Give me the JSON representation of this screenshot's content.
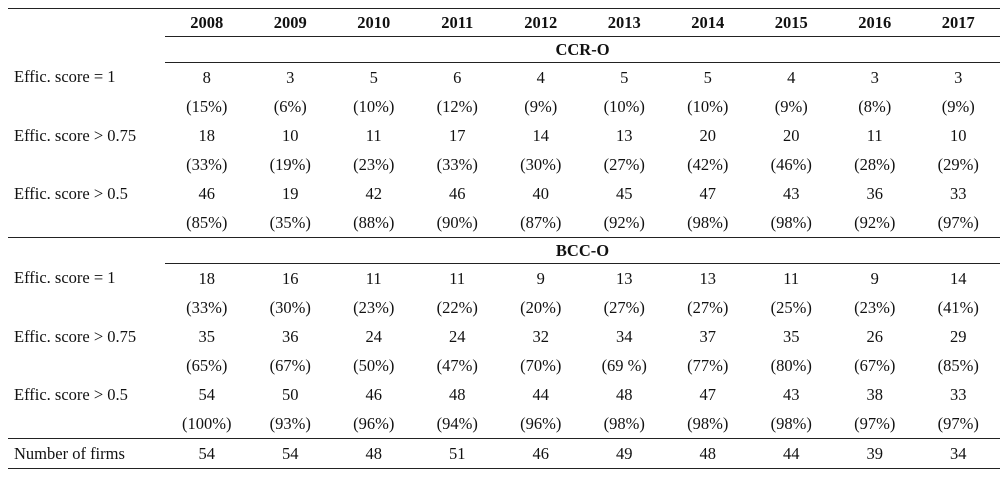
{
  "years": [
    "2008",
    "2009",
    "2010",
    "2011",
    "2012",
    "2013",
    "2014",
    "2015",
    "2016",
    "2017"
  ],
  "sections": [
    {
      "title": "CCR-O",
      "rows": [
        {
          "label": "Effic. score = 1",
          "counts": [
            "8",
            "3",
            "5",
            "6",
            "4",
            "5",
            "5",
            "4",
            "3",
            "3"
          ],
          "pcts": [
            "(15%)",
            "(6%)",
            "(10%)",
            "(12%)",
            "(9%)",
            "(10%)",
            "(10%)",
            "(9%)",
            "(8%)",
            "(9%)"
          ]
        },
        {
          "label": "Effic. score > 0.75",
          "counts": [
            "18",
            "10",
            "11",
            "17",
            "14",
            "13",
            "20",
            "20",
            "11",
            "10"
          ],
          "pcts": [
            "(33%)",
            "(19%)",
            "(23%)",
            "(33%)",
            "(30%)",
            "(27%)",
            "(42%)",
            "(46%)",
            "(28%)",
            "(29%)"
          ]
        },
        {
          "label": "Effic. score > 0.5",
          "counts": [
            "46",
            "19",
            "42",
            "46",
            "40",
            "45",
            "47",
            "43",
            "36",
            "33"
          ],
          "pcts": [
            "(85%)",
            "(35%)",
            "(88%)",
            "(90%)",
            "(87%)",
            "(92%)",
            "(98%)",
            "(98%)",
            "(92%)",
            "(97%)"
          ]
        }
      ]
    },
    {
      "title": "BCC-O",
      "rows": [
        {
          "label": "Effic. score = 1",
          "counts": [
            "18",
            "16",
            "11",
            "11",
            "9",
            "13",
            "13",
            "11",
            "9",
            "14"
          ],
          "pcts": [
            "(33%)",
            "(30%)",
            "(23%)",
            "(22%)",
            "(20%)",
            "(27%)",
            "(27%)",
            "(25%)",
            "(23%)",
            "(41%)"
          ]
        },
        {
          "label": "Effic. score > 0.75",
          "counts": [
            "35",
            "36",
            "24",
            "24",
            "32",
            "34",
            "37",
            "35",
            "26",
            "29"
          ],
          "pcts": [
            "(65%)",
            "(67%)",
            "(50%)",
            "(47%)",
            "(70%)",
            "(69 %)",
            "(77%)",
            "(80%)",
            "(67%)",
            "(85%)"
          ]
        },
        {
          "label": "Effic. score > 0.5",
          "counts": [
            "54",
            "50",
            "46",
            "48",
            "44",
            "48",
            "47",
            "43",
            "38",
            "33"
          ],
          "pcts": [
            "(100%)",
            "(93%)",
            "(96%)",
            "(94%)",
            "(96%)",
            "(98%)",
            "(98%)",
            "(98%)",
            "(97%)",
            "(97%)"
          ]
        }
      ]
    }
  ],
  "firms": {
    "label": "Number of firms",
    "values": [
      "54",
      "54",
      "48",
      "51",
      "46",
      "49",
      "48",
      "44",
      "39",
      "34"
    ]
  }
}
